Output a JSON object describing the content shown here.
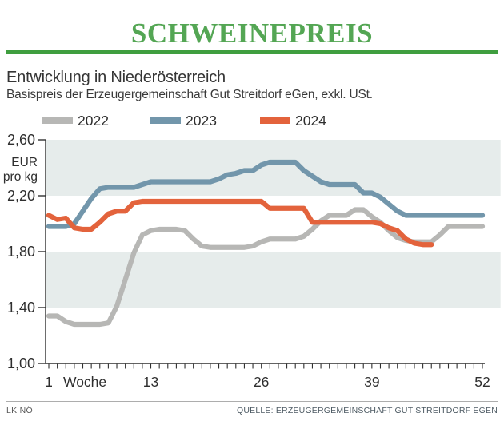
{
  "header": {
    "title": "SCHWEINEPREIS",
    "title_color": "#54a654",
    "rule_color": "#3f9e3f"
  },
  "subheader": {
    "heading": "Entwicklung in Niederösterreich",
    "subtitle": "Basispreis der Erzeugergemeinschaft Gut Streitdorf eGen, exkl. USt."
  },
  "legend": [
    {
      "label": "2022",
      "color": "#b7b7b5"
    },
    {
      "label": "2023",
      "color": "#7296ab"
    },
    {
      "label": "2024",
      "color": "#e3633c"
    }
  ],
  "footer": {
    "left": "LK NÖ",
    "right": "QUELLE: ERZEUGERGEMEINSCHAFT GUT STREITDORF EGEN"
  },
  "chart_data": {
    "type": "line",
    "title": "Schweinepreis - Entwicklung in Niederösterreich",
    "xlabel": "Woche",
    "ylabel_lines": [
      "EUR",
      "pro kg"
    ],
    "ylim": [
      1.0,
      2.6
    ],
    "weeks_total": 52,
    "xticks": [
      {
        "week": 1,
        "label": "1"
      },
      {
        "week": 13,
        "label": "13"
      },
      {
        "week": 26,
        "label": "26"
      },
      {
        "week": 39,
        "label": "39"
      },
      {
        "week": 52,
        "label": "52"
      }
    ],
    "yticks": [
      {
        "value": 2.6,
        "label": "2,60"
      },
      {
        "value": 2.2,
        "label": "2,20"
      },
      {
        "value": 1.8,
        "label": "1,80"
      },
      {
        "value": 1.4,
        "label": "1,40"
      },
      {
        "value": 1.0,
        "label": "1,00"
      }
    ],
    "bands": [
      [
        2.6,
        2.2
      ],
      [
        1.8,
        1.4
      ]
    ],
    "band_color": "#e6eceb",
    "axis_color": "#2f2f2f",
    "grid": false,
    "legend_position": "top-left",
    "series": [
      {
        "name": "2022",
        "color": "#b7b7b5",
        "start_week": 1,
        "values": [
          1.34,
          1.34,
          1.3,
          1.28,
          1.28,
          1.28,
          1.28,
          1.29,
          1.41,
          1.6,
          1.79,
          1.92,
          1.95,
          1.96,
          1.96,
          1.96,
          1.95,
          1.89,
          1.84,
          1.83,
          1.83,
          1.83,
          1.83,
          1.83,
          1.84,
          1.87,
          1.89,
          1.89,
          1.89,
          1.89,
          1.91,
          1.96,
          2.02,
          2.06,
          2.06,
          2.06,
          2.1,
          2.1,
          2.05,
          2.01,
          1.95,
          1.9,
          1.88,
          1.87,
          1.87,
          1.87,
          1.92,
          1.98,
          1.98,
          1.98,
          1.98,
          1.98
        ]
      },
      {
        "name": "2023",
        "color": "#7296ab",
        "start_week": 1,
        "values": [
          1.98,
          1.98,
          1.98,
          2.0,
          2.09,
          2.18,
          2.25,
          2.26,
          2.26,
          2.26,
          2.26,
          2.28,
          2.3,
          2.3,
          2.3,
          2.3,
          2.3,
          2.3,
          2.3,
          2.3,
          2.32,
          2.35,
          2.36,
          2.38,
          2.38,
          2.42,
          2.44,
          2.44,
          2.44,
          2.44,
          2.38,
          2.34,
          2.3,
          2.28,
          2.28,
          2.28,
          2.28,
          2.22,
          2.22,
          2.19,
          2.14,
          2.09,
          2.06,
          2.06,
          2.06,
          2.06,
          2.06,
          2.06,
          2.06,
          2.06,
          2.06,
          2.06
        ]
      },
      {
        "name": "2024",
        "color": "#e3633c",
        "start_week": 1,
        "values": [
          2.06,
          2.03,
          2.04,
          1.97,
          1.96,
          1.96,
          2.01,
          2.07,
          2.09,
          2.09,
          2.15,
          2.16,
          2.16,
          2.16,
          2.16,
          2.16,
          2.16,
          2.16,
          2.16,
          2.16,
          2.16,
          2.16,
          2.16,
          2.16,
          2.16,
          2.16,
          2.11,
          2.11,
          2.11,
          2.11,
          2.11,
          2.01,
          2.01,
          2.01,
          2.01,
          2.01,
          2.01,
          2.01,
          2.01,
          2.0,
          1.97,
          1.95,
          1.89,
          1.86,
          1.85,
          1.85
        ]
      }
    ]
  }
}
